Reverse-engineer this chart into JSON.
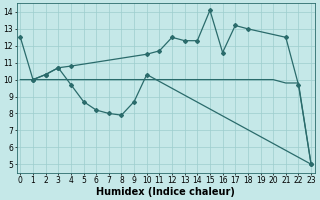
{
  "line1": {
    "x": [
      0,
      1,
      2,
      3,
      4,
      5,
      6,
      7,
      8,
      9,
      10,
      11,
      12,
      13,
      14,
      15,
      16,
      17,
      18,
      19,
      20,
      21,
      22,
      23
    ],
    "y": [
      10,
      10,
      10,
      10,
      10,
      10,
      10,
      10,
      10,
      10,
      10,
      10,
      10,
      10,
      10,
      10,
      10,
      10,
      10,
      10,
      10,
      9.8,
      9.8,
      5.0
    ],
    "color": "#2a6b6b",
    "linewidth": 0.9,
    "linestyle": "-",
    "marker": null
  },
  "line2": {
    "x": [
      0,
      1,
      2,
      3,
      4,
      10,
      11,
      12,
      13,
      14,
      15,
      16,
      17,
      18,
      21,
      22,
      23
    ],
    "y": [
      12.5,
      10,
      10.3,
      10.7,
      10.8,
      11.5,
      11.7,
      12.5,
      12.3,
      12.3,
      14.1,
      11.6,
      13.2,
      13.0,
      12.5,
      9.7,
      5.0
    ],
    "color": "#2a6b6b",
    "linewidth": 0.9,
    "linestyle": "-",
    "marker": "D",
    "markersize": 2.0
  },
  "line3": {
    "x": [
      1,
      2,
      3,
      4,
      5,
      6,
      7,
      8,
      9,
      10,
      23
    ],
    "y": [
      10,
      10.3,
      10.7,
      9.7,
      8.7,
      8.2,
      8.0,
      7.9,
      8.7,
      10.3,
      5.0
    ],
    "color": "#2a6b6b",
    "linewidth": 0.9,
    "linestyle": "-",
    "marker": "D",
    "markersize": 2.0
  },
  "background_color": "#c5e8e8",
  "grid_color": "#9dcece",
  "xlim": [
    -0.3,
    23.3
  ],
  "ylim": [
    4.5,
    14.5
  ],
  "xticks": [
    0,
    1,
    2,
    3,
    4,
    5,
    6,
    7,
    8,
    9,
    10,
    11,
    12,
    13,
    14,
    15,
    16,
    17,
    18,
    19,
    20,
    21,
    22,
    23
  ],
  "yticks": [
    5,
    6,
    7,
    8,
    9,
    10,
    11,
    12,
    13,
    14
  ],
  "xlabel": "Humidex (Indice chaleur)",
  "tick_fontsize": 5.5,
  "label_fontsize": 7.0
}
